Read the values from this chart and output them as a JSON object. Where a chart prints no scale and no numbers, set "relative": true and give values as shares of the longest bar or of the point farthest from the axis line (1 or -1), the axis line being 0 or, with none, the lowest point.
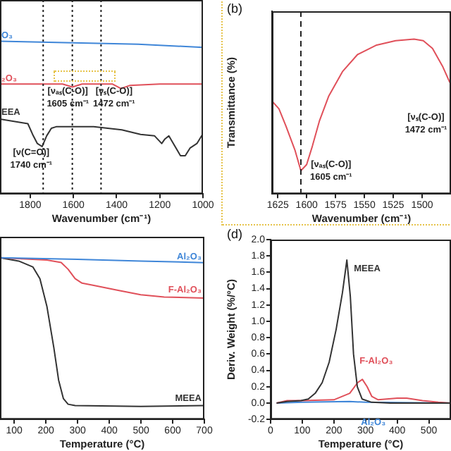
{
  "chart_data": [
    {
      "type": "line",
      "relative": true,
      "tick_labels": "x",
      "xlabel": "Wavenumber (cm⁻¹)",
      "xlim": [
        1940,
        1000
      ],
      "xticks": [
        1800,
        1600,
        1400,
        1200,
        1000
      ],
      "series": [
        {
          "name": "O₃",
          "color": "#3f86d8",
          "x": [
            1940,
            1600,
            1300,
            1000
          ],
          "values": [
            1.0,
            0.99,
            0.98,
            0.96
          ]
        },
        {
          "name": "₂O₃",
          "color": "#e0505a",
          "x": [
            1940,
            1650,
            1605,
            1560,
            1420,
            1380,
            1340,
            1200,
            1000
          ],
          "values": [
            0.72,
            0.72,
            0.7,
            0.72,
            0.72,
            0.69,
            0.71,
            0.72,
            0.72
          ]
        },
        {
          "name": "EEA",
          "color": "#333333",
          "x": [
            1940,
            1811,
            1789,
            1767,
            1745,
            1724,
            1702,
            1680,
            1506,
            1376,
            1289,
            1224,
            1191,
            1176,
            1158,
            1104,
            1082,
            1060,
            1028,
            1002
          ],
          "values": [
            0.49,
            0.46,
            0.39,
            0.33,
            0.31,
            0.38,
            0.43,
            0.44,
            0.44,
            0.42,
            0.39,
            0.38,
            0.33,
            0.36,
            0.38,
            0.25,
            0.25,
            0.3,
            0.33,
            0.39
          ]
        }
      ],
      "ref_lines": [
        {
          "axis": "x",
          "value": 1740,
          "line_style": "dotted"
        },
        {
          "axis": "x",
          "value": 1605,
          "line_style": "dotted"
        },
        {
          "axis": "x",
          "value": 1472,
          "line_style": "dotted"
        }
      ],
      "annotations": [
        "[ν(C=O)]\n1740 cm⁻¹",
        "[νₐₛ(C-O)]\n1605 cm⁻¹",
        "[νₛ(C-O)]\n1472 cm⁻¹"
      ]
    },
    {
      "type": "line",
      "relative": true,
      "tick_labels": "x",
      "title": "(b)",
      "xlabel": "Wavenumber (cm⁻¹)",
      "ylabel": "Transmittance (%)",
      "xlim": [
        1630,
        1475
      ],
      "xticks": [
        1625,
        1600,
        1575,
        1550,
        1525,
        1500
      ],
      "series": [
        {
          "color": "#e0505a",
          "x": [
            1630,
            1624,
            1618,
            1610,
            1605,
            1600,
            1595,
            1589,
            1581,
            1569,
            1556,
            1540,
            1523,
            1507,
            1499,
            1491,
            1482,
            1476
          ],
          "values": [
            0.6,
            0.55,
            0.44,
            0.28,
            0.15,
            0.19,
            0.31,
            0.47,
            0.63,
            0.79,
            0.9,
            0.96,
            0.99,
            1.0,
            0.99,
            0.94,
            0.82,
            0.72
          ]
        }
      ],
      "ref_lines": [
        {
          "axis": "x",
          "value": 1605,
          "line_style": "dashed"
        }
      ],
      "annotations": [
        "[νₐₛ(C-O)]\n1605 cm⁻¹",
        "[νₛ(C-O)]\n1472 cm⁻¹"
      ]
    },
    {
      "type": "line",
      "relative": true,
      "tick_labels": "x",
      "xlabel": "Temperature (°C)",
      "xlim": [
        55,
        700
      ],
      "xticks": [
        100,
        200,
        300,
        400,
        500,
        600,
        700
      ],
      "series": [
        {
          "name": "Al₂O₃",
          "color": "#3f86d8",
          "x": [
            55,
            300,
            500,
            700
          ],
          "values": [
            1.0,
            0.99,
            0.98,
            0.97
          ]
        },
        {
          "name": "F-Al₂O₃",
          "color": "#e0505a",
          "x": [
            55,
            203,
            248,
            270,
            292,
            314,
            351,
            425,
            499,
            573,
            700
          ],
          "values": [
            1.0,
            0.986,
            0.971,
            0.929,
            0.871,
            0.843,
            0.829,
            0.8,
            0.771,
            0.757,
            0.751
          ]
        },
        {
          "name": "MEEA",
          "color": "#333333",
          "x": [
            55,
            114,
            159,
            181,
            203,
            225,
            240,
            255,
            270,
            292,
            499,
            700
          ],
          "values": [
            1.0,
            0.98,
            0.943,
            0.871,
            0.7,
            0.443,
            0.243,
            0.129,
            0.094,
            0.086,
            0.08,
            0.086
          ]
        }
      ]
    },
    {
      "type": "line",
      "title": "(d)",
      "xlabel": "Temperature (°C)",
      "ylabel": "Deriv. Weight (%/°C)",
      "xlim": [
        0,
        570
      ],
      "xticks": [
        0,
        100,
        200,
        300,
        400,
        500
      ],
      "ylim": [
        -0.2,
        2.0
      ],
      "yticks": [
        {
          "value": -0.2,
          "label": "-0.2"
        },
        {
          "value": 0,
          "label": "0.0"
        },
        {
          "value": 0.2,
          "label": "0.2"
        },
        {
          "value": 0.4,
          "label": "0.4"
        },
        {
          "value": 0.6,
          "label": "0.6"
        },
        {
          "value": 0.8,
          "label": "0.8"
        },
        {
          "value": 1.0,
          "label": "1.0"
        },
        {
          "value": 1.2,
          "label": "1.2"
        },
        {
          "value": 1.4,
          "label": "1.4"
        },
        {
          "value": 1.6,
          "label": "1.6"
        },
        {
          "value": 1.8,
          "label": "1.8"
        },
        {
          "value": 2.0,
          "label": "2.0"
        }
      ],
      "series": [
        {
          "name": "MEEA",
          "color": "#333333",
          "x": [
            19,
            52,
            96,
            119,
            141,
            163,
            185,
            207,
            227,
            241,
            252,
            262,
            274,
            289,
            319,
            378,
            570
          ],
          "values": [
            0.0,
            0.02,
            0.03,
            0.05,
            0.12,
            0.25,
            0.5,
            0.9,
            1.35,
            1.75,
            1.3,
            0.6,
            0.2,
            0.05,
            0.01,
            0.0,
            0.0
          ]
        },
        {
          "name": "F-Al₂O₃",
          "color": "#e0505a",
          "x": [
            19,
            52,
            100,
            200,
            250,
            275,
            290,
            305,
            320,
            340,
            400,
            430,
            480,
            530,
            570
          ],
          "values": [
            0.0,
            0.03,
            0.03,
            0.04,
            0.12,
            0.25,
            0.29,
            0.2,
            0.08,
            0.04,
            0.06,
            0.06,
            0.03,
            0.01,
            0.0
          ]
        },
        {
          "name": "Al₂O₃",
          "color": "#3f86d8",
          "x": [
            19,
            100,
            250,
            300,
            570
          ],
          "values": [
            0.0,
            0.01,
            0.02,
            0.01,
            0.0
          ]
        }
      ]
    }
  ]
}
